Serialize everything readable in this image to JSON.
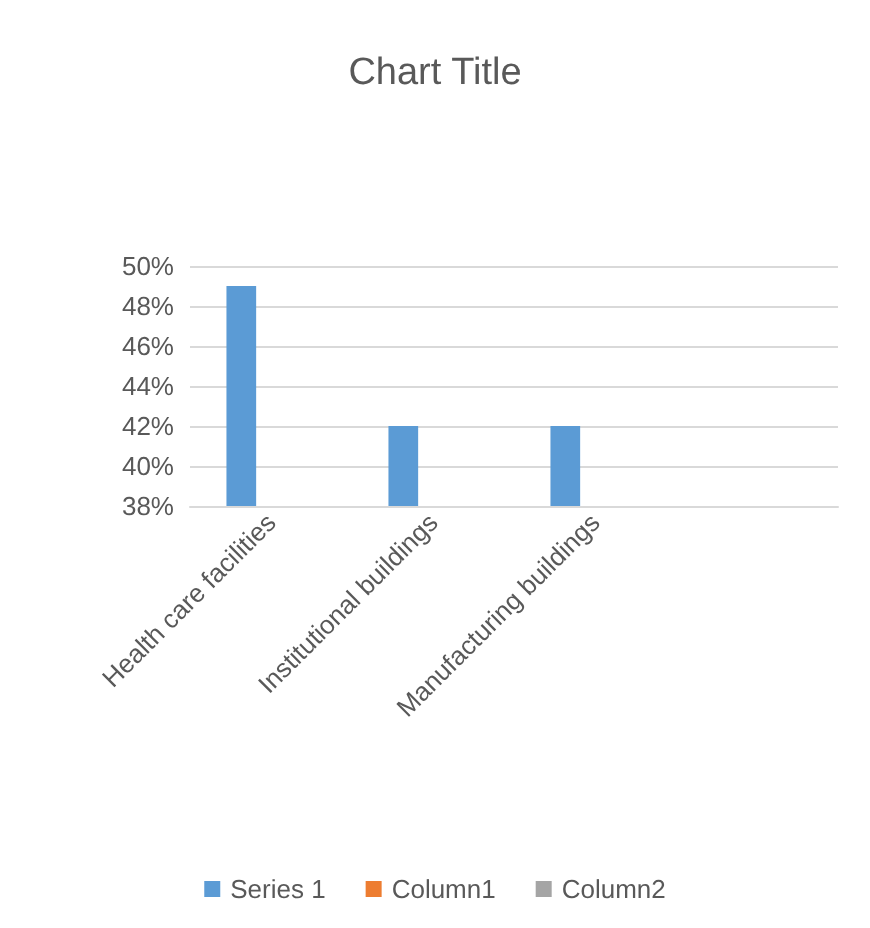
{
  "chart_data": {
    "type": "bar",
    "title": "Chart Title",
    "categories": [
      "Health care facilities",
      "Institutional buildings",
      "Manufacturing buildings",
      null
    ],
    "series": [
      {
        "name": "Series 1",
        "color": "#5b9bd5",
        "values": [
          49,
          42,
          42,
          null
        ]
      },
      {
        "name": "Column1",
        "color": "#ed7d31",
        "values": [
          null,
          null,
          null,
          null
        ]
      },
      {
        "name": "Column2",
        "color": "#a5a5a5",
        "values": [
          null,
          null,
          null,
          null
        ]
      }
    ],
    "ylim": [
      38,
      50
    ],
    "yticks": [
      {
        "value": 38,
        "label": "38%"
      },
      {
        "value": 40,
        "label": "40%"
      },
      {
        "value": 42,
        "label": "42%"
      },
      {
        "value": 44,
        "label": "44%"
      },
      {
        "value": 46,
        "label": "46%"
      },
      {
        "value": 48,
        "label": "48%"
      },
      {
        "value": 50,
        "label": "50%"
      }
    ],
    "grid": "y",
    "legend": "bottom"
  }
}
